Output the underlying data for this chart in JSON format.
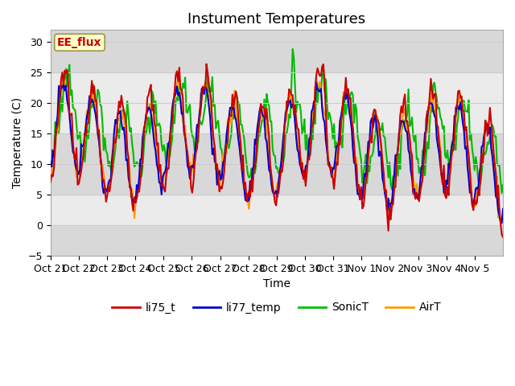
{
  "title": "Instument Temperatures",
  "xlabel": "Time",
  "ylabel": "Temperature (C)",
  "ylim": [
    -5,
    32
  ],
  "yticks": [
    -5,
    0,
    5,
    10,
    15,
    20,
    25,
    30
  ],
  "xtick_labels": [
    "Oct 21",
    "Oct 22",
    "Oct 23",
    "Oct 24",
    "Oct 25",
    "Oct 26",
    "Oct 27",
    "Oct 28",
    "Oct 29",
    "Oct 30",
    "Oct 31",
    "Nov 1",
    "Nov 2",
    "Nov 3",
    "Nov 4",
    "Nov 5"
  ],
  "colors": {
    "li75_t": "#cc0000",
    "li77_temp": "#0000cc",
    "SonicT": "#00bb00",
    "AirT": "#ff9900"
  },
  "annotation_text": "EE_flux",
  "annotation_color": "#cc0000",
  "annotation_bg": "#ffffcc",
  "shading_bands": [
    {
      "ymin": -5,
      "ymax": 0
    },
    {
      "ymin": 5,
      "ymax": 15
    },
    {
      "ymin": 25,
      "ymax": 32
    }
  ],
  "shading_color": "#d8d8d8",
  "plot_bg": "#ebebeb",
  "grid_color": "#cccccc",
  "title_fontsize": 13,
  "axis_fontsize": 10,
  "tick_fontsize": 9,
  "legend_fontsize": 10,
  "line_width": 1.5
}
